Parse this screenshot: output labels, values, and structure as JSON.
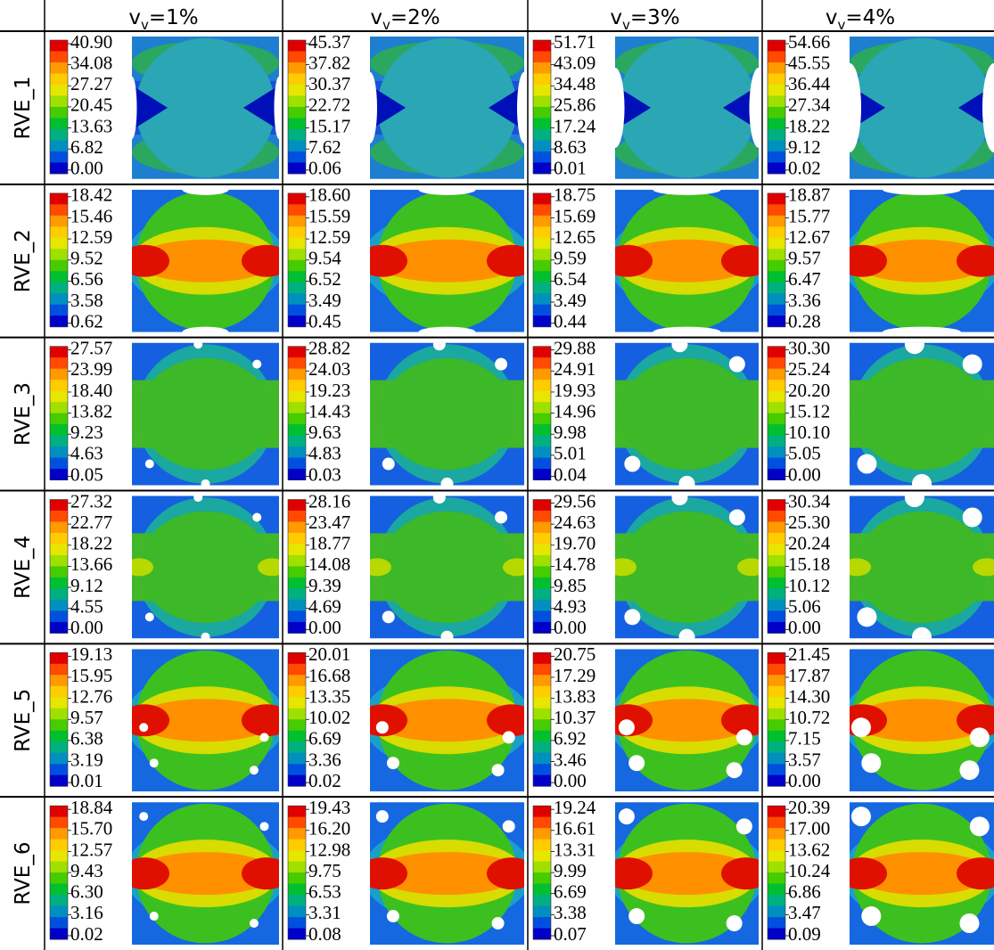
{
  "columns": [
    {
      "symbol": "v",
      "subscript": "v",
      "text": "=1%"
    },
    {
      "symbol": "v",
      "subscript": "v",
      "text": "=2%"
    },
    {
      "symbol": "v",
      "subscript": "v",
      "text": "=3%"
    },
    {
      "symbol": "v",
      "subscript": "v",
      "text": "=4%"
    }
  ],
  "rows": [
    {
      "label": "RVE_1",
      "cells": [
        [
          "40.90",
          "34.08",
          "27.27",
          "20.45",
          "13.63",
          "6.82",
          "0.00"
        ],
        [
          "45.37",
          "37.82",
          "30.37",
          "22.72",
          "15.17",
          "7.62",
          "0.06"
        ],
        [
          "51.71",
          "43.09",
          "34.48",
          "25.86",
          "17.24",
          "8.63",
          "0.01"
        ],
        [
          "54.66",
          "45.55",
          "36.44",
          "27.34",
          "18.22",
          "9.12",
          "0.02"
        ]
      ]
    },
    {
      "label": "RVE_2",
      "cells": [
        [
          "18.42",
          "15.46",
          "12.59",
          "9.52",
          "6.56",
          "3.58",
          "0.62"
        ],
        [
          "18.60",
          "15.59",
          "12.59",
          "9.54",
          "6.52",
          "3.49",
          "0.45"
        ],
        [
          "18.75",
          "15.69",
          "12.65",
          "9.59",
          "6.54",
          "3.49",
          "0.44"
        ],
        [
          "18.87",
          "15.77",
          "12.67",
          "9.57",
          "6.47",
          "3.36",
          "0.28"
        ]
      ]
    },
    {
      "label": "RVE_3",
      "cells": [
        [
          "27.57",
          "23.99",
          "18.40",
          "13.82",
          "9.23",
          "4.63",
          "0.05"
        ],
        [
          "28.82",
          "24.03",
          "19.23",
          "14.43",
          "9.63",
          "4.83",
          "0.03"
        ],
        [
          "29.88",
          "24.91",
          "19.93",
          "14.96",
          "9.98",
          "5.01",
          "0.04"
        ],
        [
          "30.30",
          "25.24",
          "20.20",
          "15.12",
          "10.10",
          "5.05",
          "0.00"
        ]
      ]
    },
    {
      "label": "RVE_4",
      "cells": [
        [
          "27.32",
          "22.77",
          "18.22",
          "13.66",
          "9.12",
          "4.55",
          "0.00"
        ],
        [
          "28.16",
          "23.47",
          "18.77",
          "14.08",
          "9.39",
          "4.69",
          "0.00"
        ],
        [
          "29.56",
          "24.63",
          "19.70",
          "14.78",
          "9.85",
          "4.93",
          "0.00"
        ],
        [
          "30.34",
          "25.30",
          "20.24",
          "15.18",
          "10.12",
          "5.06",
          "0.00"
        ]
      ]
    },
    {
      "label": "RVE_5",
      "cells": [
        [
          "19.13",
          "15.95",
          "12.76",
          "9.57",
          "6.38",
          "3.19",
          "0.01"
        ],
        [
          "20.01",
          "16.68",
          "13.35",
          "10.02",
          "6.69",
          "3.36",
          "0.02"
        ],
        [
          "20.75",
          "17.29",
          "13.83",
          "10.37",
          "6.92",
          "3.46",
          "0.00"
        ],
        [
          "21.45",
          "17.87",
          "14.30",
          "10.72",
          "7.15",
          "3.57",
          "0.00"
        ]
      ]
    },
    {
      "label": "RVE_6",
      "cells": [
        [
          "18.84",
          "15.70",
          "12.57",
          "9.43",
          "6.30",
          "3.16",
          "0.02"
        ],
        [
          "19.43",
          "16.20",
          "12.98",
          "9.75",
          "6.53",
          "3.31",
          "0.08"
        ],
        [
          "19.24",
          "16.61",
          "13.31",
          "9.99",
          "6.69",
          "3.38",
          "0.07"
        ],
        [
          "20.39",
          "17.00",
          "13.62",
          "10.24",
          "6.86",
          "3.47",
          "0.09"
        ]
      ]
    }
  ]
}
